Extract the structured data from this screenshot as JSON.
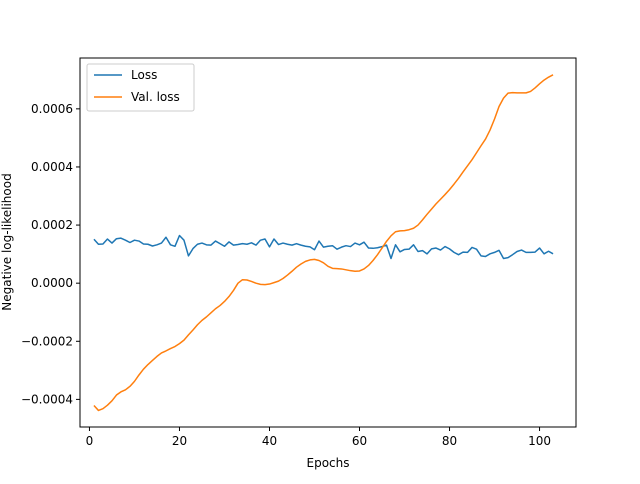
{
  "chart_data": {
    "type": "line",
    "title": "",
    "xlabel": "Epochs",
    "ylabel": "Negative log-likelihood",
    "xlim": [
      -2.1,
      108.1
    ],
    "ylim": [
      -0.000495,
      0.000775
    ],
    "xticks": [
      0,
      20,
      40,
      60,
      80,
      100
    ],
    "xtick_labels": [
      "0",
      "20",
      "40",
      "60",
      "80",
      "100"
    ],
    "yticks": [
      -0.0004,
      -0.0002,
      0.0,
      0.0002,
      0.0004,
      0.0006
    ],
    "ytick_labels": [
      "−0.0004",
      "−0.0002",
      "0.0000",
      "0.0002",
      "0.0004",
      "0.0006"
    ],
    "grid": false,
    "legend_position": "upper-left",
    "legend_labels": [
      "Loss",
      "Val. loss"
    ],
    "series": [
      {
        "name": "Loss",
        "color": "#1f77b4",
        "x": [
          1,
          2,
          3,
          4,
          5,
          6,
          7,
          8,
          9,
          10,
          11,
          12,
          13,
          14,
          15,
          16,
          17,
          18,
          19,
          20,
          21,
          22,
          23,
          24,
          25,
          26,
          27,
          28,
          29,
          30,
          31,
          32,
          33,
          34,
          35,
          36,
          37,
          38,
          39,
          40,
          41,
          42,
          43,
          44,
          45,
          46,
          47,
          48,
          49,
          50,
          51,
          52,
          53,
          54,
          55,
          56,
          57,
          58,
          59,
          60,
          61,
          62,
          63,
          64,
          65,
          66,
          67,
          68,
          69,
          70,
          71,
          72,
          73,
          74,
          75,
          76,
          77,
          78,
          79,
          80,
          81,
          82,
          83,
          84,
          85,
          86,
          87,
          88,
          89,
          90,
          91,
          92,
          93,
          94,
          95,
          96,
          97,
          98,
          99,
          100,
          101,
          102,
          103
        ],
        "values": [
          0.000151,
          0.000134,
          0.000135,
          0.000152,
          0.000138,
          0.000153,
          0.000155,
          0.000148,
          0.00014,
          0.000148,
          0.000145,
          0.000135,
          0.000134,
          0.000128,
          0.000132,
          0.000138,
          0.000158,
          0.000132,
          0.000127,
          0.000164,
          0.000148,
          9.4e-05,
          0.000119,
          0.000134,
          0.000138,
          0.000132,
          0.000131,
          0.000145,
          0.000136,
          0.000127,
          0.000142,
          0.000131,
          0.000133,
          0.000136,
          0.000134,
          0.000139,
          0.000131,
          0.000148,
          0.000152,
          0.000125,
          0.000152,
          0.000133,
          0.000138,
          0.000134,
          0.000131,
          0.000136,
          0.000131,
          0.000127,
          0.000125,
          0.000115,
          0.000145,
          0.000124,
          0.000127,
          0.000129,
          0.000117,
          0.000124,
          0.000129,
          0.000126,
          0.000138,
          0.000132,
          0.000141,
          0.000121,
          0.00012,
          0.000122,
          0.000126,
          0.000131,
          8.5e-05,
          0.000132,
          0.000108,
          0.000116,
          0.000117,
          0.000132,
          0.000109,
          0.000112,
          0.000101,
          0.000118,
          0.000121,
          0.000114,
          0.000126,
          0.000118,
          0.000106,
          9.8e-05,
          0.000107,
          0.000106,
          0.000123,
          0.000117,
          9.4e-05,
          9.2e-05,
          0.000101,
          0.000106,
          0.000113,
          8.5e-05,
          8.8e-05,
          9.8e-05,
          0.000109,
          0.000114,
          0.000106,
          0.000106,
          0.000107,
          0.000121,
          0.000101,
          0.00011,
          0.000101
        ]
      },
      {
        "name": "Val. loss",
        "color": "#ff7f0e",
        "x": [
          1,
          2,
          3,
          4,
          5,
          6,
          7,
          8,
          9,
          10,
          11,
          12,
          13,
          14,
          15,
          16,
          17,
          18,
          19,
          20,
          21,
          22,
          23,
          24,
          25,
          26,
          27,
          28,
          29,
          30,
          31,
          32,
          33,
          34,
          35,
          36,
          37,
          38,
          39,
          40,
          41,
          42,
          43,
          44,
          45,
          46,
          47,
          48,
          49,
          50,
          51,
          52,
          53,
          54,
          55,
          56,
          57,
          58,
          59,
          60,
          61,
          62,
          63,
          64,
          65,
          66,
          67,
          68,
          69,
          70,
          71,
          72,
          73,
          74,
          75,
          76,
          77,
          78,
          79,
          80,
          81,
          82,
          83,
          84,
          85,
          86,
          87,
          88,
          89,
          90,
          91,
          92,
          93,
          94,
          95,
          96,
          97,
          98,
          99,
          100,
          101,
          102,
          103
        ],
        "values": [
          -0.000421,
          -0.000438,
          -0.000432,
          -0.00042,
          -0.000405,
          -0.000385,
          -0.000374,
          -0.000367,
          -0.000355,
          -0.000338,
          -0.000316,
          -0.000296,
          -0.00028,
          -0.000266,
          -0.000252,
          -0.00024,
          -0.000233,
          -0.000225,
          -0.000218,
          -0.000208,
          -0.000196,
          -0.000178,
          -0.000161,
          -0.000143,
          -0.000128,
          -0.000116,
          -0.000102,
          -8.8e-05,
          -7.7e-05,
          -6.3e-05,
          -4.6e-05,
          -2.5e-05,
          0.0,
          1.2e-05,
          1.1e-05,
          6e-06,
          0.0,
          -4e-06,
          -5e-06,
          -3e-06,
          2e-06,
          7e-06,
          1.6e-05,
          2.8e-05,
          4.1e-05,
          5.5e-05,
          6.6e-05,
          7.5e-05,
          8e-05,
          8.2e-05,
          7.8e-05,
          7e-05,
          5.8e-05,
          5.1e-05,
          5e-05,
          4.9e-05,
          4.6e-05,
          4.3e-05,
          4.1e-05,
          4.2e-05,
          4.9e-05,
          6.1e-05,
          7.8e-05,
          9.8e-05,
          0.000121,
          0.000144,
          0.000163,
          0.000177,
          0.00018,
          0.000181,
          0.000184,
          0.000189,
          0.0002,
          0.000218,
          0.000237,
          0.000255,
          0.000273,
          0.000289,
          0.000305,
          0.000322,
          0.000341,
          0.000361,
          0.000383,
          0.000404,
          0.000425,
          0.000449,
          0.000473,
          0.000496,
          0.000527,
          0.000565,
          0.000608,
          0.000637,
          0.000654,
          0.000656,
          0.000655,
          0.000655,
          0.000655,
          0.00066,
          0.000672,
          0.000686,
          0.000699,
          0.000709,
          0.000717
        ]
      }
    ]
  }
}
